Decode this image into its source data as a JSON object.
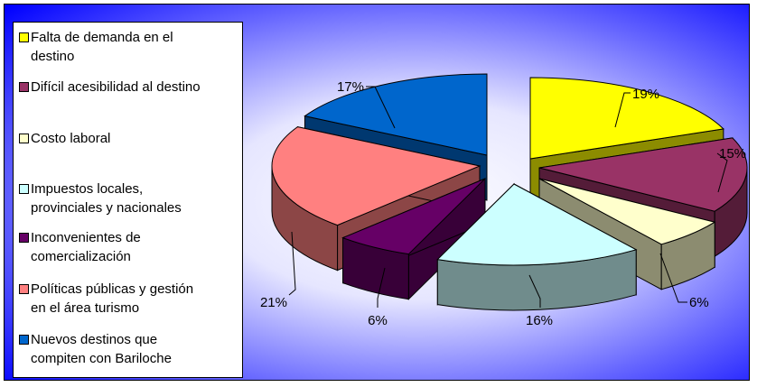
{
  "chart_data": {
    "type": "pie",
    "title": "",
    "legend_placement": "left",
    "slices": [
      {
        "label": "Falta de demanda en el destino",
        "value": 19,
        "value_label": "19%",
        "color": "#ffff00"
      },
      {
        "label": "Difícil acesibilidad al destino",
        "value": 15,
        "value_label": "15%",
        "color": "#993366"
      },
      {
        "label": "Costo laboral",
        "value": 6,
        "value_label": "6%",
        "color": "#ffffcc"
      },
      {
        "label": "Impuestos locales, provinciales y nacionales",
        "value": 16,
        "value_label": "16%",
        "color": "#ccffff"
      },
      {
        "label": "Inconvenientes de comercialización",
        "value": 6,
        "value_label": "6%",
        "color": "#660066"
      },
      {
        "label": "Políticas públicas y gestión en el área turismo",
        "value": 21,
        "value_label": "21%",
        "color": "#ff8080"
      },
      {
        "label": "Nuevos destinos que compiten con Bariloche",
        "value": 17,
        "value_label": "17%",
        "color": "#0066cc"
      }
    ]
  },
  "legend": {
    "items": [
      {
        "line1": "Falta de demanda en el",
        "line2": "destino"
      },
      {
        "line1": "Difícil acesibilidad al destino",
        "line2": ""
      },
      {
        "line1": "Costo laboral",
        "line2": ""
      },
      {
        "line1": "Impuestos locales,",
        "line2": "provinciales y nacionales"
      },
      {
        "line1": "Inconvenientes de",
        "line2": "comercialización"
      },
      {
        "line1": "Políticas públicas y gestión",
        "line2": "en el área turismo"
      },
      {
        "line1": "Nuevos destinos que",
        "line2": "compiten con Bariloche"
      }
    ]
  },
  "colors": {
    "background_edge": "#0000ff",
    "background_center": "#ffffff"
  }
}
